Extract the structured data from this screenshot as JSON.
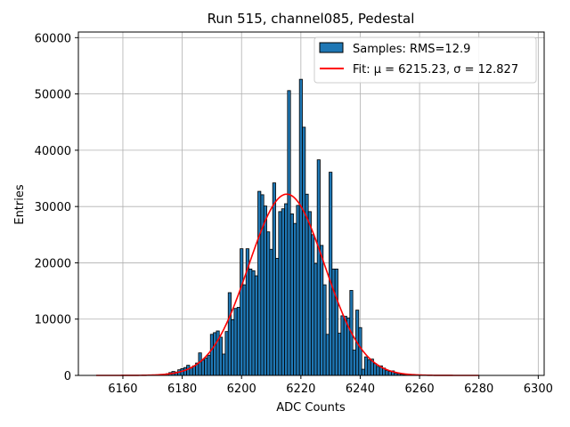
{
  "chart_data": {
    "type": "bar",
    "title": "Run 515, channel085, Pedestal",
    "xlabel": "ADC Counts",
    "ylabel": "Entries",
    "xlim": [
      6145,
      6302
    ],
    "ylim": [
      0,
      61000
    ],
    "xticks": [
      6160,
      6180,
      6200,
      6220,
      6240,
      6260,
      6280,
      6300
    ],
    "yticks": [
      0,
      10000,
      20000,
      30000,
      40000,
      50000,
      60000
    ],
    "grid": true,
    "legend_position": "top-right",
    "colors": {
      "bars": "#1f77b4",
      "bar_edge": "#000000",
      "fit": "#ff0000",
      "grid": "#b0b0b0"
    },
    "series": [
      {
        "name": "Samples: RMS=12.9",
        "kind": "histogram",
        "x": [
          6173,
          6174,
          6175,
          6176,
          6177,
          6178,
          6179,
          6180,
          6181,
          6182,
          6183,
          6184,
          6185,
          6186,
          6187,
          6188,
          6189,
          6190,
          6191,
          6192,
          6193,
          6194,
          6195,
          6196,
          6197,
          6198,
          6199,
          6200,
          6201,
          6202,
          6203,
          6204,
          6205,
          6206,
          6207,
          6208,
          6209,
          6210,
          6211,
          6212,
          6213,
          6214,
          6215,
          6216,
          6217,
          6218,
          6219,
          6220,
          6221,
          6222,
          6223,
          6224,
          6225,
          6226,
          6227,
          6228,
          6229,
          6230,
          6231,
          6232,
          6233,
          6234,
          6235,
          6236,
          6237,
          6238,
          6239,
          6240,
          6241,
          6242,
          6243,
          6244,
          6245,
          6246,
          6247,
          6248,
          6249,
          6250,
          6251,
          6252,
          6253,
          6254,
          6255,
          6256,
          6257,
          6258
        ],
        "values": [
          100,
          200,
          300,
          500,
          700,
          600,
          1000,
          1200,
          1400,
          1800,
          1400,
          1700,
          2200,
          4000,
          2700,
          3100,
          3600,
          7300,
          7600,
          7900,
          6800,
          3800,
          7800,
          14700,
          9900,
          11900,
          12100,
          22500,
          16100,
          22500,
          18900,
          18600,
          17700,
          32700,
          32100,
          30100,
          25500,
          22400,
          34200,
          20800,
          29100,
          29600,
          30500,
          50600,
          28700,
          27000,
          30200,
          52600,
          44100,
          32200,
          29100,
          25000,
          19900,
          38300,
          23100,
          16100,
          7300,
          36100,
          18900,
          18900,
          7500,
          10600,
          10500,
          10200,
          15100,
          4500,
          11600,
          8500,
          1100,
          3300,
          2800,
          2900,
          2100,
          1600,
          1700,
          1300,
          900,
          700,
          800,
          400,
          300,
          200,
          150,
          100,
          60,
          30
        ]
      },
      {
        "name": "Fit: μ = 6215.23, σ = 12.827",
        "kind": "gaussian",
        "mu": 6215.23,
        "sigma": 12.827,
        "amplitude": 32200,
        "x_range": [
          6151,
          6280
        ]
      }
    ]
  }
}
